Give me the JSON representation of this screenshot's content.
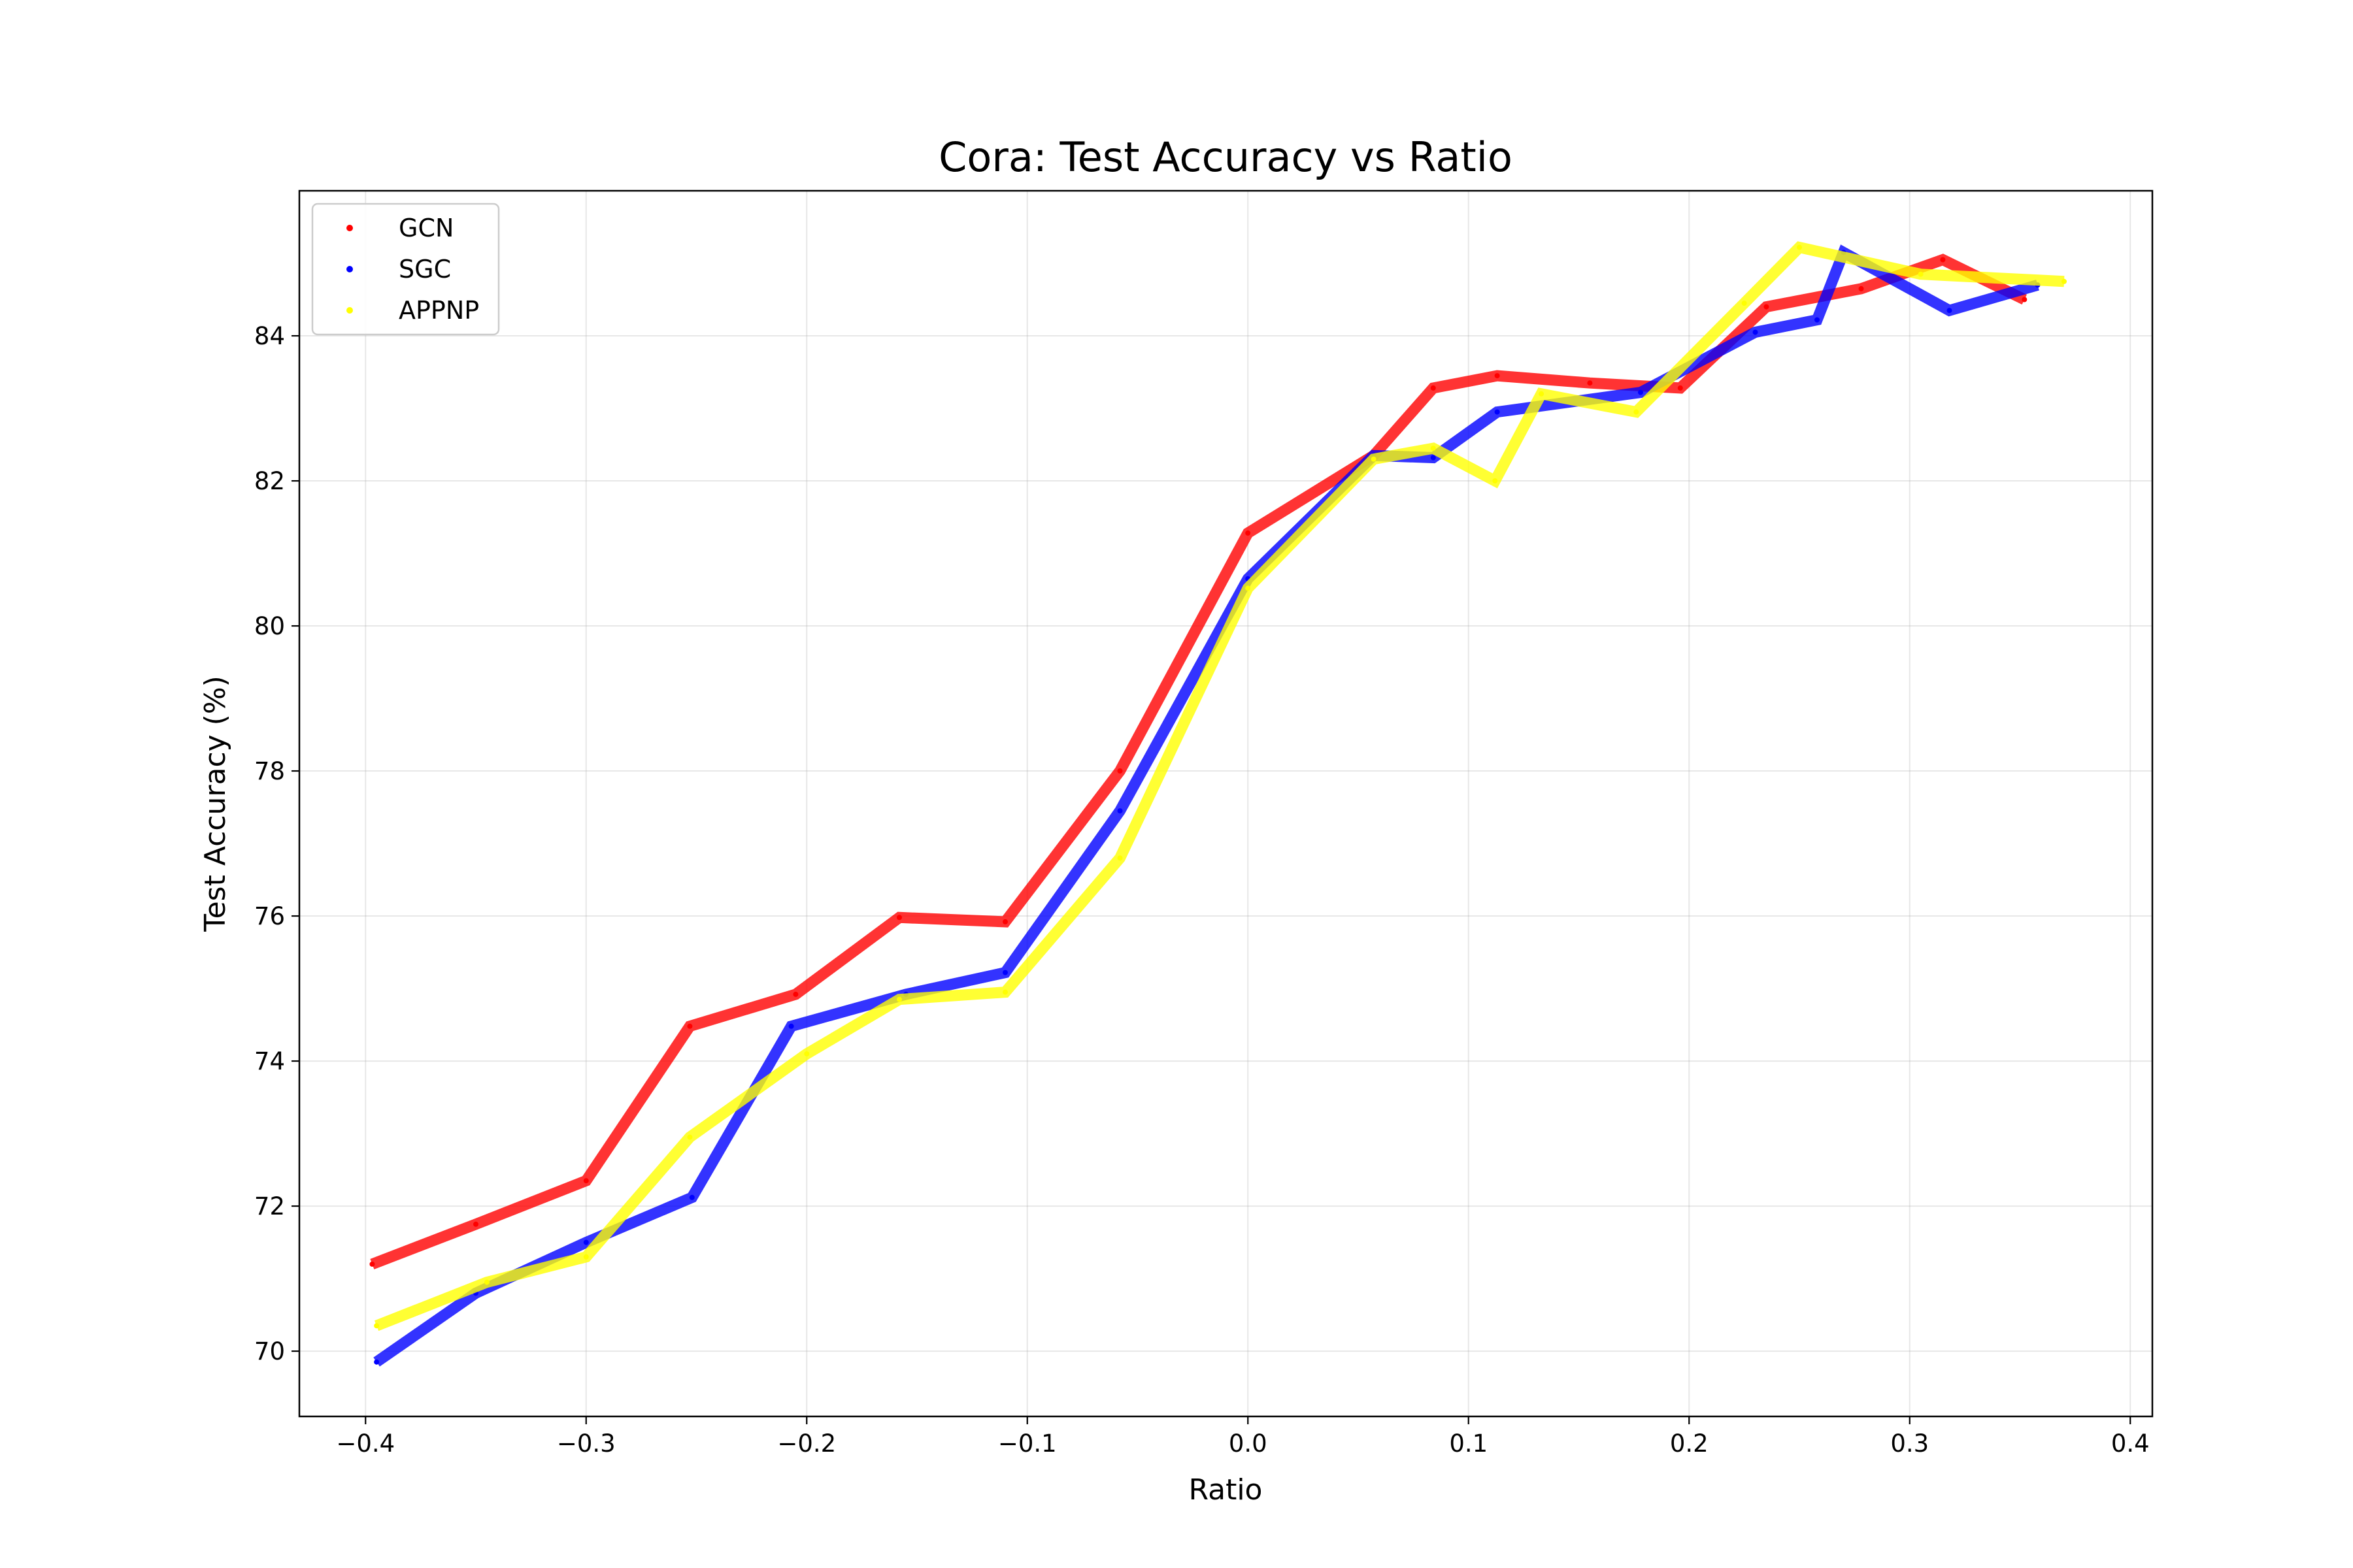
{
  "chart_data": {
    "type": "line",
    "title": "Cora: Test Accuracy vs Ratio",
    "xlabel": "Ratio",
    "ylabel": "Test Accuracy (%)",
    "xlim": [
      -0.43,
      0.41
    ],
    "ylim": [
      69.1,
      86.0
    ],
    "xticks": [
      -0.4,
      -0.3,
      -0.2,
      -0.1,
      0.0,
      0.1,
      0.2,
      0.3,
      0.4
    ],
    "xtick_labels": [
      "−0.4",
      "−0.3",
      "−0.2",
      "−0.1",
      "0.0",
      "0.1",
      "0.2",
      "0.3",
      "0.4"
    ],
    "yticks": [
      70,
      72,
      74,
      76,
      78,
      80,
      82,
      84
    ],
    "ytick_labels": [
      "70",
      "72",
      "74",
      "76",
      "78",
      "80",
      "82",
      "84"
    ],
    "grid": true,
    "legend_position": "top-left",
    "series": [
      {
        "name": "GCN",
        "color": "#ff0000",
        "points": [
          [
            -0.397,
            71.2
          ],
          [
            -0.35,
            71.75
          ],
          [
            -0.3,
            72.35
          ],
          [
            -0.253,
            74.48
          ],
          [
            -0.205,
            74.92
          ],
          [
            -0.158,
            75.98
          ],
          [
            -0.11,
            75.92
          ],
          [
            -0.058,
            78.0
          ],
          [
            0.0,
            81.28
          ],
          [
            0.057,
            82.35
          ],
          [
            0.084,
            83.28
          ],
          [
            0.113,
            83.45
          ],
          [
            0.155,
            83.35
          ],
          [
            0.196,
            83.28
          ],
          [
            0.235,
            84.4
          ],
          [
            0.278,
            84.65
          ],
          [
            0.315,
            85.05
          ],
          [
            0.352,
            84.5
          ]
        ]
      },
      {
        "name": "SGC",
        "color": "#0000ff",
        "points": [
          [
            -0.395,
            69.85
          ],
          [
            -0.35,
            70.8
          ],
          [
            -0.3,
            71.5
          ],
          [
            -0.252,
            72.12
          ],
          [
            -0.207,
            74.48
          ],
          [
            -0.155,
            74.92
          ],
          [
            -0.11,
            75.22
          ],
          [
            -0.058,
            77.45
          ],
          [
            0.0,
            80.65
          ],
          [
            0.057,
            82.35
          ],
          [
            0.084,
            82.32
          ],
          [
            0.113,
            82.95
          ],
          [
            0.178,
            83.22
          ],
          [
            0.23,
            84.05
          ],
          [
            0.258,
            84.22
          ],
          [
            0.27,
            85.15
          ],
          [
            0.318,
            84.35
          ],
          [
            0.358,
            84.7
          ]
        ]
      },
      {
        "name": "APPNP",
        "color": "#ffff00",
        "points": [
          [
            -0.395,
            70.35
          ],
          [
            -0.345,
            70.95
          ],
          [
            -0.3,
            71.3
          ],
          [
            -0.253,
            72.95
          ],
          [
            -0.2,
            74.1
          ],
          [
            -0.158,
            74.85
          ],
          [
            -0.11,
            74.95
          ],
          [
            -0.058,
            76.8
          ],
          [
            0.0,
            80.52
          ],
          [
            0.057,
            82.3
          ],
          [
            0.084,
            82.45
          ],
          [
            0.112,
            82.0
          ],
          [
            0.133,
            83.2
          ],
          [
            0.176,
            82.95
          ],
          [
            0.225,
            84.45
          ],
          [
            0.25,
            85.22
          ],
          [
            0.305,
            84.85
          ],
          [
            0.37,
            84.75
          ]
        ]
      }
    ]
  }
}
